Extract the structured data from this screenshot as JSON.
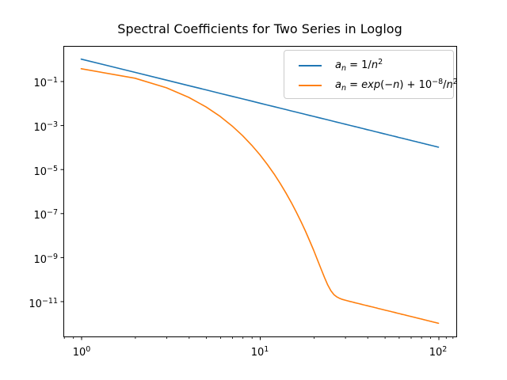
{
  "chart_data": {
    "type": "line",
    "title": "Spectral Coefficients for Two Series in Loglog",
    "xlabel": "",
    "ylabel": "",
    "xscale": "log",
    "yscale": "log",
    "grid": false,
    "legend_position": "upper right",
    "xlim": [
      0.794,
      126
    ],
    "ylim": [
      2.5e-13,
      3.98
    ],
    "xlim_log10": [
      -0.1,
      2.1
    ],
    "ylim_log10": [
      -12.6,
      0.6
    ],
    "x_ticks": [
      {
        "value": 1,
        "base": "10",
        "exp": "0"
      },
      {
        "value": 10,
        "base": "10",
        "exp": "1"
      },
      {
        "value": 100,
        "base": "10",
        "exp": "2"
      }
    ],
    "x_minor_ticks": [
      0.8,
      0.9,
      2,
      3,
      4,
      5,
      6,
      7,
      8,
      9,
      20,
      30,
      40,
      50,
      60,
      70,
      80,
      90,
      110,
      120
    ],
    "y_ticks": [
      {
        "value": 0.1,
        "base": "10",
        "exp": "−1"
      },
      {
        "value": 0.001,
        "base": "10",
        "exp": "−3"
      },
      {
        "value": 1e-05,
        "base": "10",
        "exp": "−5"
      },
      {
        "value": 1e-07,
        "base": "10",
        "exp": "−7"
      },
      {
        "value": 1e-09,
        "base": "10",
        "exp": "−9"
      },
      {
        "value": 1e-11,
        "base": "10",
        "exp": "−11"
      }
    ],
    "x": [
      1,
      2,
      3,
      4,
      5,
      6,
      7,
      8,
      9,
      10,
      11,
      12,
      13,
      14,
      15,
      16,
      17,
      18,
      19,
      20,
      21,
      22,
      23,
      24,
      25,
      26,
      27,
      28,
      29,
      30,
      31,
      32,
      33,
      34,
      35,
      36,
      37,
      38,
      39,
      40,
      41,
      42,
      43,
      44,
      45,
      46,
      47,
      48,
      49,
      50,
      51,
      52,
      53,
      54,
      55,
      56,
      57,
      58,
      59,
      60,
      61,
      62,
      63,
      64,
      65,
      66,
      67,
      68,
      69,
      70,
      71,
      72,
      73,
      74,
      75,
      76,
      77,
      78,
      79,
      80,
      81,
      82,
      83,
      84,
      85,
      86,
      87,
      88,
      89,
      90,
      91,
      92,
      93,
      94,
      95,
      96,
      97,
      98,
      99,
      100
    ],
    "series": [
      {
        "name": "a_n = 1/n^2",
        "color": "#1f77b4",
        "legend_parts": [
          [
            "i",
            "a"
          ],
          [
            "sub",
            "n"
          ],
          [
            "n",
            " = 1/"
          ],
          [
            "i",
            "n"
          ],
          [
            "sup",
            "2"
          ]
        ],
        "values": [
          1,
          0.25,
          0.1111,
          0.0625,
          0.04,
          0.02778,
          0.02041,
          0.015625,
          0.012346,
          0.01,
          0.008264,
          0.006944,
          0.005917,
          0.005102,
          0.004444,
          0.003906,
          0.00346,
          0.003086,
          0.00277,
          0.0025,
          0.002268,
          0.002066,
          0.00189,
          0.001736,
          0.0016,
          0.001479,
          0.001372,
          0.001276,
          0.001189,
          0.001111,
          0.001041,
          0.0009766,
          0.0009183,
          0.000865,
          0.0008163,
          0.0007716,
          0.0007305,
          0.0006925,
          0.0006575,
          0.000625,
          0.0005949,
          0.000567,
          0.0005408,
          0.0005165,
          0.0004938,
          0.0004726,
          0.0004527,
          0.000434,
          0.0004165,
          0.0004,
          0.0003845,
          0.0003698,
          0.000356,
          0.000343,
          0.0003306,
          0.0003189,
          0.0003078,
          0.0002973,
          0.0002873,
          0.0002778,
          0.0002687,
          0.0002601,
          0.000252,
          0.0002441,
          0.0002367,
          0.0002296,
          0.0002228,
          0.0002163,
          0.0002101,
          0.0002041,
          0.0001984,
          0.0001929,
          0.0001877,
          0.0001826,
          0.0001778,
          0.0001731,
          0.0001687,
          0.0001644,
          0.0001602,
          0.0001563,
          0.0001524,
          0.0001487,
          0.0001452,
          0.0001417,
          0.0001384,
          0.0001352,
          0.0001321,
          0.0001291,
          0.0001262,
          0.0001235,
          0.0001208,
          0.0001181,
          0.0001156,
          0.0001132,
          0.0001108,
          0.0001085,
          0.0001063,
          0.0001041,
          0.000102,
          0.0001
        ]
      },
      {
        "name": "a_n = exp(-n) + 10^-8/n^2",
        "color": "#ff7f0e",
        "legend_parts": [
          [
            "i",
            "a"
          ],
          [
            "sub",
            "n"
          ],
          [
            "n",
            " = "
          ],
          [
            "i",
            "exp"
          ],
          [
            "n",
            "(−"
          ],
          [
            "i",
            "n"
          ],
          [
            "n",
            ") + 10"
          ],
          [
            "sup",
            "−8"
          ],
          [
            "n",
            "/"
          ],
          [
            "i",
            "n"
          ],
          [
            "sup",
            "2"
          ]
        ],
        "values": [
          0.3679,
          0.1353,
          0.04979,
          0.01832,
          0.006738,
          0.002479,
          0.000912,
          0.0003355,
          0.0001234,
          4.54e-05,
          1.67e-05,
          6.144e-06,
          2.26e-06,
          8.316e-07,
          3.059e-07,
          1.126e-07,
          4.14e-08,
          1.526e-08,
          5.63e-09,
          2.086e-09,
          7.809e-10,
          2.996e-10,
          1.215e-10,
          5.511e-11,
          2.989e-11,
          1.99e-11,
          1.56e-11,
          1.345e-11,
          1.215e-11,
          1.12e-11,
          1.044e-11,
          9.778e-12,
          9.188e-12,
          8.651e-12,
          8.163e-12,
          7.716e-12,
          7.305e-12,
          6.925e-12,
          6.575e-12,
          6.25e-12,
          5.949e-12,
          5.669e-12,
          5.408e-12,
          5.165e-12,
          4.938e-12,
          4.726e-12,
          4.527e-12,
          4.34e-12,
          4.165e-12,
          4e-12,
          3.845e-12,
          3.698e-12,
          3.56e-12,
          3.429e-12,
          3.306e-12,
          3.189e-12,
          3.078e-12,
          2.973e-12,
          2.873e-12,
          2.778e-12,
          2.687e-12,
          2.601e-12,
          2.52e-12,
          2.441e-12,
          2.367e-12,
          2.296e-12,
          2.228e-12,
          2.163e-12,
          2.101e-12,
          2.041e-12,
          1.984e-12,
          1.929e-12,
          1.877e-12,
          1.826e-12,
          1.778e-12,
          1.731e-12,
          1.687e-12,
          1.644e-12,
          1.602e-12,
          1.563e-12,
          1.524e-12,
          1.487e-12,
          1.452e-12,
          1.417e-12,
          1.384e-12,
          1.352e-12,
          1.321e-12,
          1.291e-12,
          1.262e-12,
          1.235e-12,
          1.208e-12,
          1.181e-12,
          1.156e-12,
          1.132e-12,
          1.108e-12,
          1.085e-12,
          1.063e-12,
          1.041e-12,
          1.02e-12,
          1e-12
        ]
      }
    ]
  },
  "colors": {
    "background": "#ffffff",
    "spine": "#000000",
    "legend_border": "#cccccc",
    "series_blue": "#1f77b4",
    "series_orange": "#ff7f0e"
  }
}
